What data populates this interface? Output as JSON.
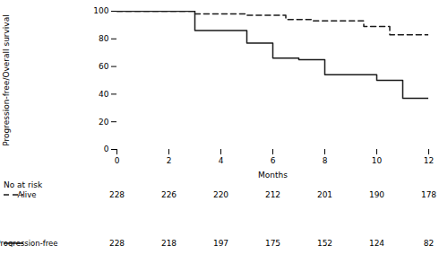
{
  "chart_data": {
    "type": "step",
    "xlabel": "Months",
    "ylabel": "Progression-free/Overall survival",
    "xlim": [
      0,
      12
    ],
    "ylim": [
      0,
      100
    ],
    "xticks": [
      0,
      2,
      4,
      6,
      8,
      10,
      12
    ],
    "yticks": [
      0,
      20,
      40,
      60,
      80,
      100
    ],
    "grid": false,
    "series": [
      {
        "name": "Alive",
        "color": "#1a1a1a",
        "line_style": "dashed",
        "x": [
          0,
          3.0,
          3.0,
          5.0,
          5.0,
          6.5,
          6.5,
          7.5,
          7.5,
          9.5,
          9.5,
          10.5,
          10.5,
          12.0
        ],
        "values": [
          100,
          100,
          98,
          98,
          97,
          97,
          94,
          94,
          93,
          93,
          89,
          89,
          83,
          83
        ]
      },
      {
        "name": "Progression-free",
        "color": "#1a1a1a",
        "line_style": "solid",
        "x": [
          0,
          3.0,
          3.0,
          5.0,
          5.0,
          6.0,
          6.0,
          7.0,
          7.0,
          8.0,
          8.0,
          10.0,
          10.0,
          11.0,
          11.0,
          12.0
        ],
        "values": [
          100,
          100,
          86,
          86,
          77,
          77,
          66,
          66,
          65,
          65,
          54,
          54,
          50,
          50,
          37,
          37
        ]
      }
    ],
    "risk_table": {
      "label": "No at risk",
      "x": [
        0,
        2,
        4,
        6,
        8,
        10,
        12
      ],
      "rows": [
        {
          "name": "Alive",
          "values": [
            228,
            226,
            220,
            212,
            201,
            190,
            178
          ]
        },
        {
          "name": "Progression-free",
          "values": [
            228,
            218,
            197,
            175,
            152,
            124,
            82
          ]
        }
      ]
    }
  }
}
